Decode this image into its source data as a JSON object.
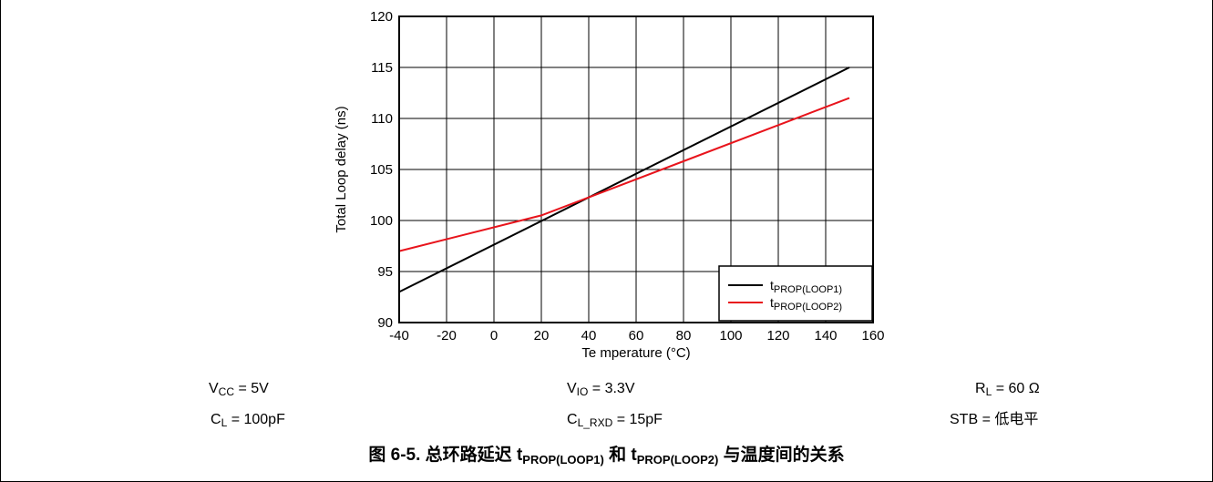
{
  "chart_data": {
    "type": "line",
    "xlabel": "Te mperature (°C)",
    "ylabel": "Total Loop delay (ns)",
    "xlim": [
      -40,
      160
    ],
    "ylim": [
      90,
      120
    ],
    "xticks": [
      "-40",
      "-20",
      "0",
      "20",
      "40",
      "60",
      "80",
      "100",
      "120",
      "140",
      "160"
    ],
    "yticks": [
      "90",
      "95",
      "100",
      "105",
      "110",
      "115",
      "120"
    ],
    "grid": true,
    "legend_position": "bottom-right",
    "series": [
      {
        "name": "t",
        "name_sub": "PROP(LOOP1)",
        "color": "#000000",
        "x": [
          -40,
          150
        ],
        "y": [
          93,
          115
        ]
      },
      {
        "name": "t",
        "name_sub": "PROP(LOOP2)",
        "color": "#e8141c",
        "x": [
          -40,
          20,
          150
        ],
        "y": [
          97,
          100.5,
          112
        ]
      }
    ]
  },
  "conditions": {
    "vcc": {
      "main": "V",
      "sub": "CC",
      "rest": " = 5V"
    },
    "cl": {
      "main": "C",
      "sub": "L",
      "rest": " = 100pF"
    },
    "vio": {
      "main": "V",
      "sub": "IO",
      "rest": " = 3.3V"
    },
    "clrxd": {
      "main": "C",
      "sub": "L_RXD",
      "rest": " = 15pF"
    },
    "rl": {
      "main": "R",
      "sub": "L",
      "rest": " = 60 Ω"
    },
    "stb": {
      "main": "STB = 低电平"
    }
  },
  "caption": {
    "prefix": "图 6-5. 总环路延迟 ",
    "t1": "t",
    "t1_sub": "PROP(LOOP1)",
    "mid": " 和 ",
    "t2": "t",
    "t2_sub": "PROP(LOOP2)",
    "suffix": " 与温度间的关系"
  }
}
